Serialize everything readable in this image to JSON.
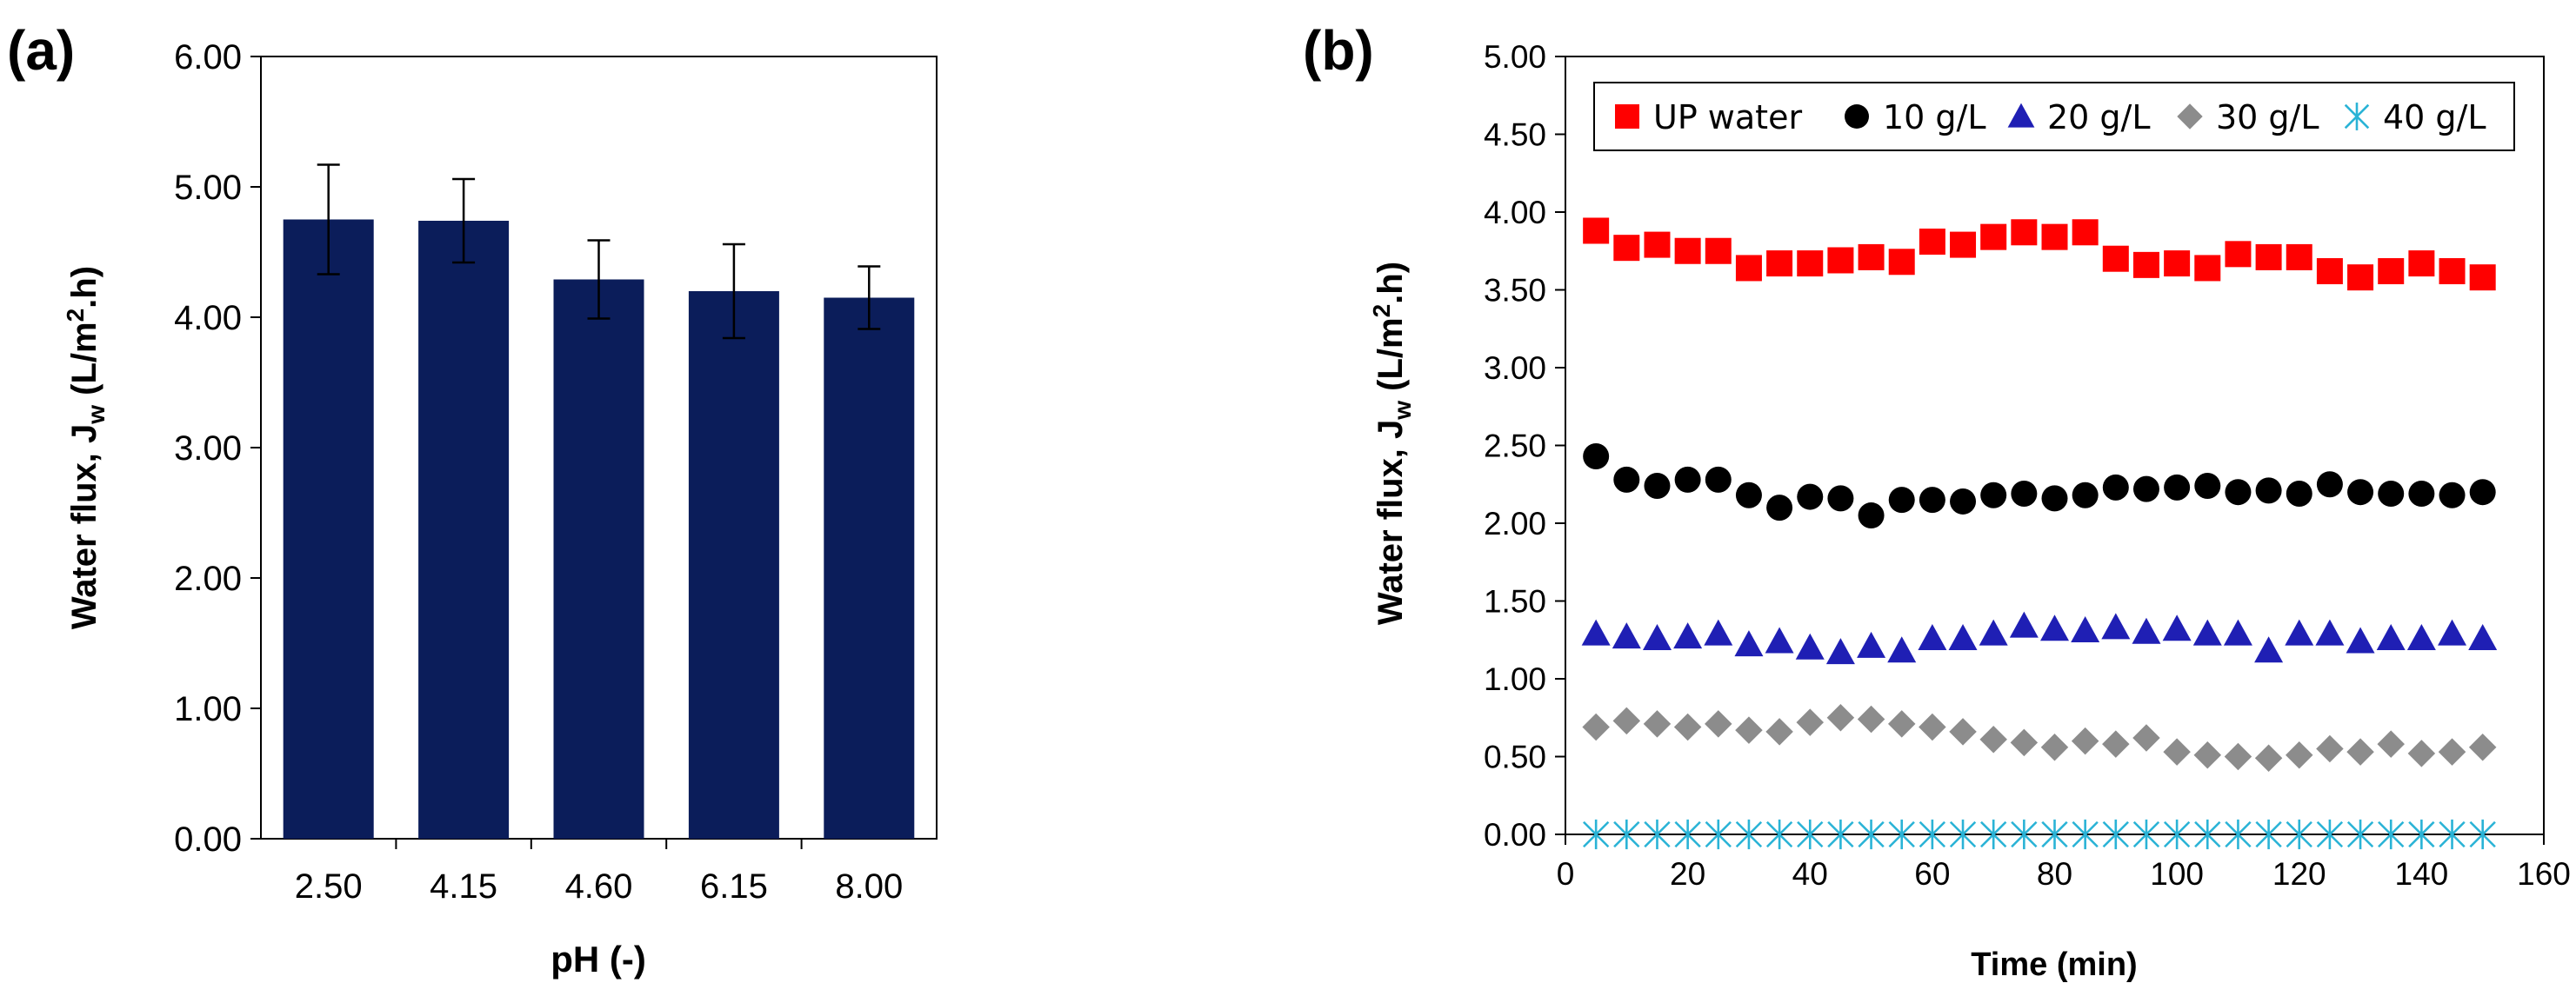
{
  "chart_data": [
    {
      "panel_label": "(a)",
      "type": "bar",
      "title": "",
      "xlabel": "pH (-)",
      "ylabel": {
        "main": "Water flux, J",
        "subscript": "w",
        "unit_pre": " (L/m",
        "unit_sup": "2",
        "unit_post": ".h)"
      },
      "categories": [
        "2.50",
        "4.15",
        "4.60",
        "6.15",
        "8.00"
      ],
      "values": [
        4.75,
        4.74,
        4.29,
        4.2,
        4.15
      ],
      "error": [
        0.42,
        0.32,
        0.3,
        0.36,
        0.24
      ],
      "ylim": [
        0,
        6
      ],
      "yticks": [
        "0.00",
        "1.00",
        "2.00",
        "3.00",
        "4.00",
        "5.00",
        "6.00"
      ],
      "bar_color": "#0b1d5a",
      "grid": false
    },
    {
      "panel_label": "(b)",
      "type": "scatter",
      "title": "",
      "xlabel": "Time (min)",
      "ylabel": {
        "main": "Water flux, J",
        "subscript": "w",
        "unit_pre": " (L/m",
        "unit_sup": "2",
        "unit_post": ".h)"
      },
      "xlim": [
        0,
        160
      ],
      "ylim": [
        0,
        5
      ],
      "xticks": [
        "0",
        "20",
        "40",
        "60",
        "80",
        "100",
        "120",
        "140",
        "160"
      ],
      "yticks": [
        "0.00",
        "0.50",
        "1.00",
        "1.50",
        "2.00",
        "2.50",
        "3.00",
        "3.50",
        "4.00",
        "4.50",
        "5.00"
      ],
      "legend_position": "top",
      "x": [
        5,
        10,
        15,
        20,
        25,
        30,
        35,
        40,
        45,
        50,
        55,
        60,
        65,
        70,
        75,
        80,
        85,
        90,
        95,
        100,
        105,
        110,
        115,
        120,
        125,
        130,
        135,
        140,
        145,
        150
      ],
      "series": [
        {
          "name": "UP water",
          "marker": "square",
          "color": "#ff0000",
          "values": [
            3.88,
            3.77,
            3.79,
            3.75,
            3.75,
            3.64,
            3.67,
            3.67,
            3.69,
            3.71,
            3.68,
            3.81,
            3.79,
            3.84,
            3.87,
            3.84,
            3.87,
            3.7,
            3.66,
            3.67,
            3.64,
            3.73,
            3.71,
            3.71,
            3.62,
            3.58,
            3.62,
            3.67,
            3.62,
            3.58
          ]
        },
        {
          "name": "10 g/L",
          "marker": "circle",
          "color": "#000000",
          "values": [
            2.43,
            2.28,
            2.24,
            2.28,
            2.28,
            2.18,
            2.1,
            2.17,
            2.16,
            2.05,
            2.15,
            2.15,
            2.14,
            2.18,
            2.19,
            2.16,
            2.18,
            2.23,
            2.22,
            2.23,
            2.24,
            2.2,
            2.21,
            2.19,
            2.25,
            2.2,
            2.19,
            2.19,
            2.18,
            2.2
          ]
        },
        {
          "name": "20 g/L",
          "marker": "triangle",
          "color": "#1f1fb4",
          "values": [
            1.29,
            1.27,
            1.26,
            1.27,
            1.29,
            1.22,
            1.24,
            1.2,
            1.17,
            1.21,
            1.18,
            1.26,
            1.26,
            1.29,
            1.34,
            1.32,
            1.31,
            1.33,
            1.3,
            1.32,
            1.29,
            1.29,
            1.18,
            1.29,
            1.29,
            1.24,
            1.26,
            1.26,
            1.29,
            1.26
          ]
        },
        {
          "name": "30 g/L",
          "marker": "diamond",
          "color": "#8c8c8c",
          "values": [
            0.69,
            0.73,
            0.71,
            0.69,
            0.71,
            0.67,
            0.66,
            0.72,
            0.75,
            0.74,
            0.71,
            0.69,
            0.66,
            0.61,
            0.59,
            0.56,
            0.6,
            0.58,
            0.62,
            0.53,
            0.51,
            0.5,
            0.49,
            0.51,
            0.55,
            0.53,
            0.58,
            0.52,
            0.53,
            0.56
          ]
        },
        {
          "name": "40 g/L",
          "marker": "asterisk",
          "color": "#2ab3d6",
          "values": [
            0.0,
            0.0,
            0.0,
            0.0,
            0.0,
            0.0,
            0.0,
            0.0,
            0.0,
            0.0,
            0.0,
            0.0,
            0.0,
            0.0,
            0.0,
            0.0,
            0.0,
            0.0,
            0.0,
            0.0,
            0.0,
            0.0,
            0.0,
            0.0,
            0.0,
            0.0,
            0.0,
            0.0,
            0.0,
            0.0
          ]
        }
      ]
    }
  ]
}
